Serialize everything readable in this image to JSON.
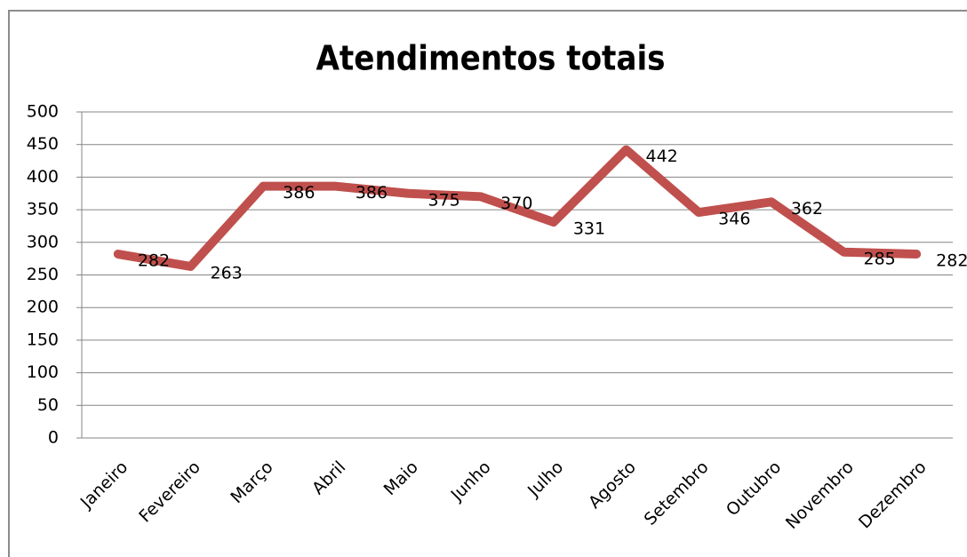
{
  "chart_data": {
    "type": "line",
    "title": "Atendimentos totais",
    "categories": [
      "Janeiro",
      "Fevereiro",
      "Março",
      "Abril",
      "Maio",
      "Junho",
      "Julho",
      "Agosto",
      "Setembro",
      "Outubro",
      "Novembro",
      "Dezembro"
    ],
    "series": [
      {
        "name": "Atendimentos",
        "color": "#c0504d",
        "values": [
          282,
          263,
          386,
          386,
          375,
          370,
          331,
          442,
          346,
          362,
          285,
          282
        ]
      }
    ],
    "ylim": [
      0,
      500
    ],
    "yticks": [
      0,
      50,
      100,
      150,
      200,
      250,
      300,
      350,
      400,
      450,
      500
    ],
    "grid": true
  }
}
